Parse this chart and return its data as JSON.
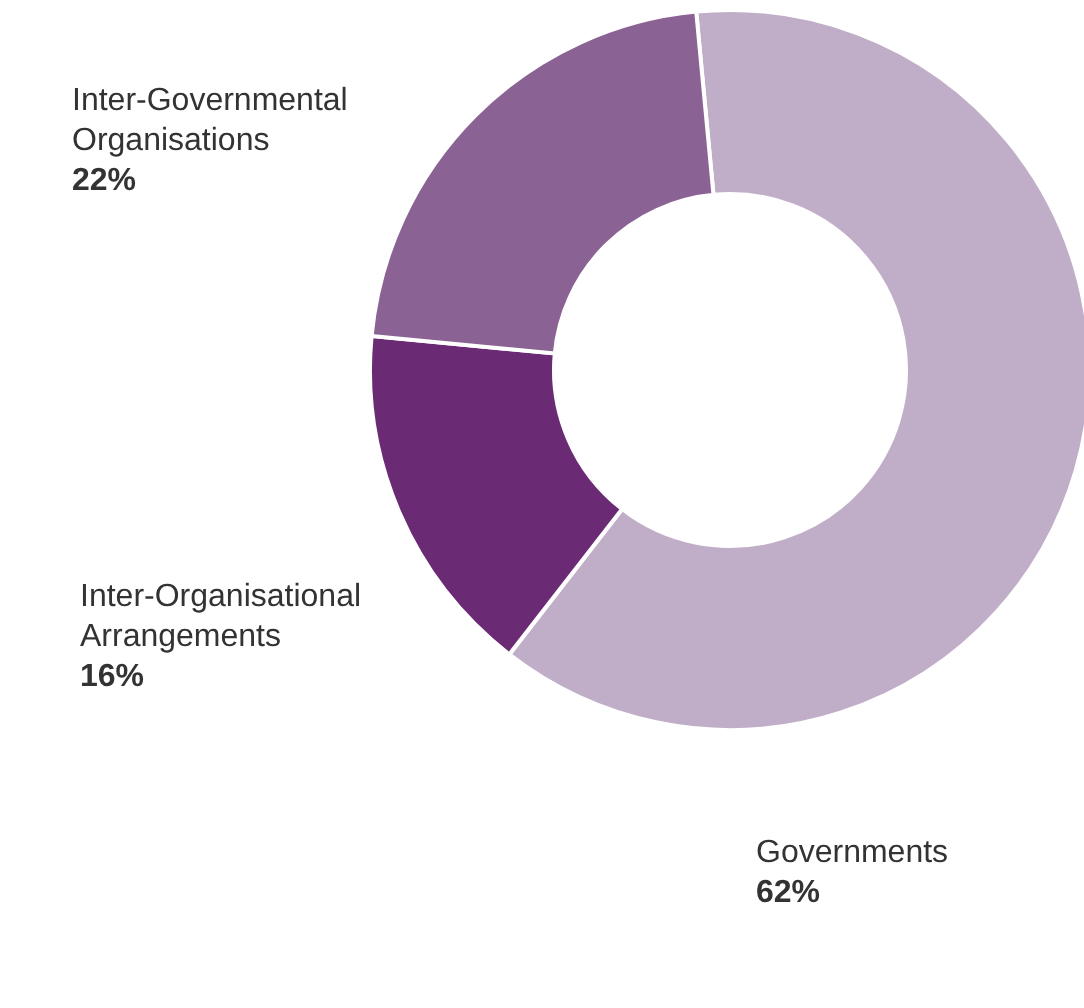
{
  "chart_data": {
    "type": "donut",
    "categories": [
      "Governments",
      "Inter-Organisational Arrangements",
      "Inter-Governmental Organisations"
    ],
    "values": [
      62,
      16,
      22
    ],
    "value_labels": [
      "62%",
      "16%",
      "22%"
    ],
    "colors": [
      "#c0aec8",
      "#6b2a74",
      "#8a6394"
    ]
  }
}
